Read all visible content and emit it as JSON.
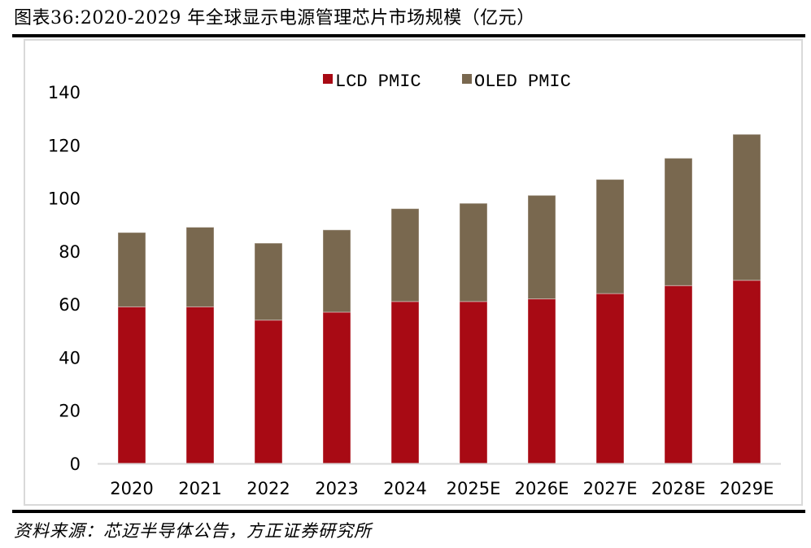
{
  "title": "图表36:2020-2029 年全球显示电源管理芯片市场规模（亿元）",
  "source": "资料来源：芯迈半导体公告，方正证券研究所",
  "colors": {
    "lcd": "#a80a14",
    "oled": "#79684f",
    "axis": "#d9d9d9"
  },
  "chart_data": {
    "type": "bar",
    "stacked": true,
    "title": "2020-2029 年全球显示电源管理芯片市场规模（亿元）",
    "xlabel": "",
    "ylabel": "",
    "categories": [
      "2020",
      "2021",
      "2022",
      "2023",
      "2024",
      "2025E",
      "2026E",
      "2027E",
      "2028E",
      "2029E"
    ],
    "series": [
      {
        "name": "LCD PMIC",
        "color": "#a80a14",
        "values": [
          59,
          59,
          54,
          57,
          61,
          61,
          62,
          64,
          67,
          69
        ]
      },
      {
        "name": "OLED PMIC",
        "color": "#79684f",
        "values": [
          28,
          30,
          29,
          31,
          35,
          37,
          39,
          43,
          48,
          55
        ]
      }
    ],
    "ylim": [
      0,
      140
    ],
    "yticks": [
      0,
      20,
      40,
      60,
      80,
      100,
      120,
      140
    ],
    "grid": false,
    "legend": "top-center"
  }
}
